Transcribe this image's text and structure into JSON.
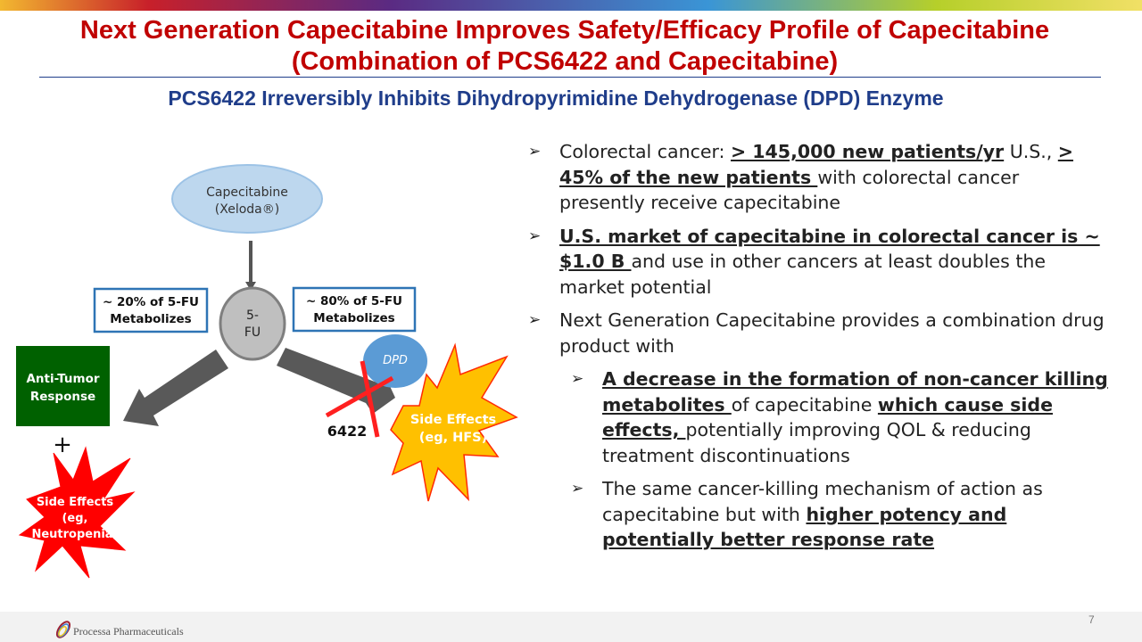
{
  "title_line1": "Next Generation Capecitabine Improves Safety/Efficacy Profile of Capecitabine",
  "title_line2": "(Combination of PCS6422 and Capecitabine)",
  "subtitle": "PCS6422 Irreversibly Inhibits Dihydropyrimidine Dehydrogenase (DPD) Enzyme",
  "diagram": {
    "capecitabine": "Capecitabine",
    "xeloda": "(Xeloda®)",
    "fu_line1": "5-",
    "fu_line2": "FU",
    "left_box_line1": "~ 20% of 5-FU",
    "left_box_line2": "Metabolizes",
    "right_box_line1": "~ 80% of 5-FU",
    "right_box_line2": "Metabolizes",
    "anti_tumor_line1": "Anti-Tumor",
    "anti_tumor_line2": "Response",
    "plus": "+",
    "neutro_line1": "Side Effects",
    "neutro_line2": "(eg,",
    "neutro_line3": "Neutropenia)",
    "dpd": "DPD",
    "inhibitor": "6422",
    "hfs_line1": "Side Effects",
    "hfs_line2": "(eg, HFS)"
  },
  "bullets": [
    {
      "segments": [
        {
          "text": "Colorectal cancer:  ",
          "bold": false
        },
        {
          "text": "> 145,000 new patients/yr",
          "bold": true
        },
        {
          "text": " U.S., ",
          "bold": false
        },
        {
          "text": "> 45% of the new patients ",
          "bold": true
        },
        {
          "text": "with colorectal cancer presently receive capecitabine",
          "bold": false
        }
      ]
    },
    {
      "segments": [
        {
          "text": "U.S. market of capecitabine in colorectal cancer is ~ $1.0 B ",
          "bold": true
        },
        {
          "text": "and use in other cancers at least doubles the market potential",
          "bold": false
        }
      ]
    },
    {
      "segments": [
        {
          "text": "Next Generation Capecitabine provides a combination drug product with",
          "bold": false
        }
      ]
    },
    {
      "sub": true,
      "segments": [
        {
          "text": "A decrease in the formation of non-cancer killing metabolites ",
          "bold": true
        },
        {
          "text": "of capecitabine ",
          "bold": false
        },
        {
          "text": "which cause side effects, ",
          "bold": true
        },
        {
          "text": "potentially improving QOL & reducing treatment discontinuations",
          "bold": false
        }
      ]
    },
    {
      "sub": true,
      "segments": [
        {
          "text": "The same cancer-killing mechanism of action as capecitabine but with ",
          "bold": false
        },
        {
          "text": "higher potency and potentially better response rate",
          "bold": true
        }
      ]
    }
  ],
  "footer": {
    "company": "Processa Pharmaceuticals",
    "page": "7"
  }
}
